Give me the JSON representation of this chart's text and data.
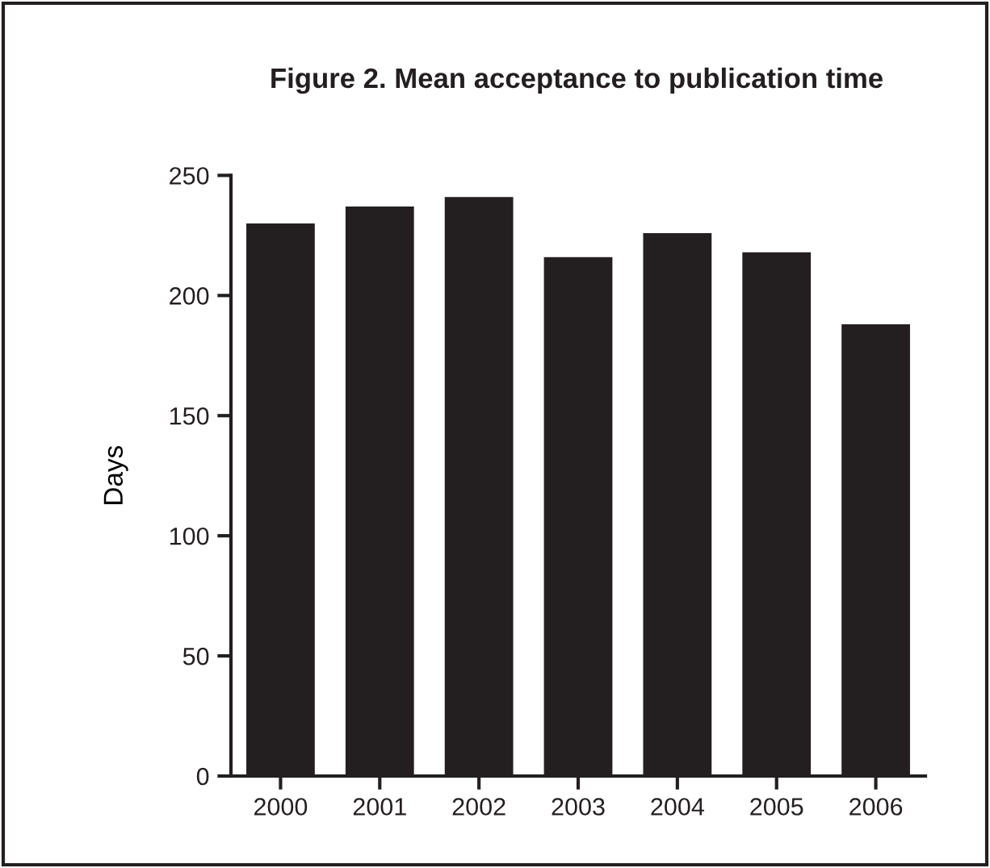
{
  "chart_data": {
    "type": "bar",
    "title": "Figure 2. Mean acceptance to publication time",
    "ylabel": "Days",
    "categories": [
      "2000",
      "2001",
      "2002",
      "2003",
      "2004",
      "2005",
      "2006"
    ],
    "values": [
      230,
      237,
      241,
      216,
      226,
      218,
      188
    ],
    "color": "#231f20",
    "ylim": [
      0,
      250
    ],
    "yticks": [
      0,
      50,
      100,
      150,
      200,
      250
    ],
    "grid": false,
    "legend": false
  }
}
